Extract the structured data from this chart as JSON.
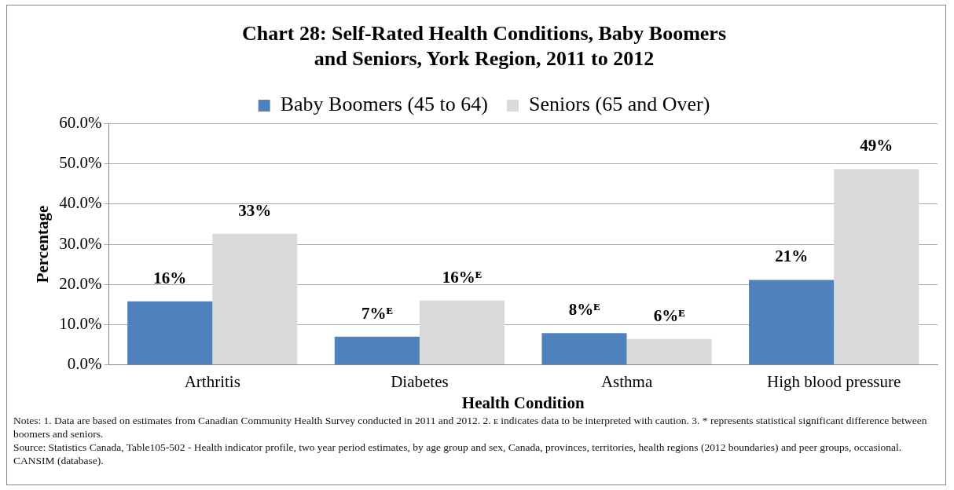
{
  "chart_data": {
    "type": "bar",
    "title": "Chart 28: Self-Rated Health Conditions, Baby Boomers and Seniors, York Region, 2011 to 2012",
    "xlabel": "Health Condition",
    "ylabel": "Percentage",
    "categories": [
      "Arthritis",
      "Diabetes",
      "Asthma",
      "High blood pressure"
    ],
    "series": [
      {
        "name": "Baby Boomers (45 to 64)",
        "color": "#4f81bd",
        "values": [
          15.8,
          7.0,
          7.9,
          21.1
        ],
        "value_labels": [
          "16%",
          "7%ᴱ",
          "8%ᴱ",
          "21%"
        ]
      },
      {
        "name": "Seniors (65 and Over)",
        "color": "#d9d9d9",
        "values": [
          32.6,
          16.0,
          6.4,
          48.7
        ],
        "value_labels": [
          "33%",
          "16%ᴱ",
          "6%ᴱ",
          "49%"
        ]
      }
    ],
    "ylim": [
      0,
      60
    ],
    "yticks": [
      {
        "value": 0,
        "label": "0.0%"
      },
      {
        "value": 10,
        "label": "10.0%"
      },
      {
        "value": 20,
        "label": "20.0%"
      },
      {
        "value": 30,
        "label": "30.0%"
      },
      {
        "value": 40,
        "label": "40.0%"
      },
      {
        "value": 50,
        "label": "50.0%"
      },
      {
        "value": 60,
        "label": "60.0%"
      }
    ],
    "grid": "y",
    "legend": "top",
    "annotations": [
      "Notes: 1. Data are based on estimates from Canadian Community Health Survey conducted in 2011 and 2012. 2. ᴇ indicates data to be interpreted with caution. 3. * represents statistical significant difference between boomers and seniors.",
      "Source: Statistics Canada,  Table105-502 - Health indicator profile, two year period estimates, by age group and sex, Canada, provinces, territories, health regions (2012 boundaries) and peer groups, occasional. CANSIM (database)."
    ]
  }
}
